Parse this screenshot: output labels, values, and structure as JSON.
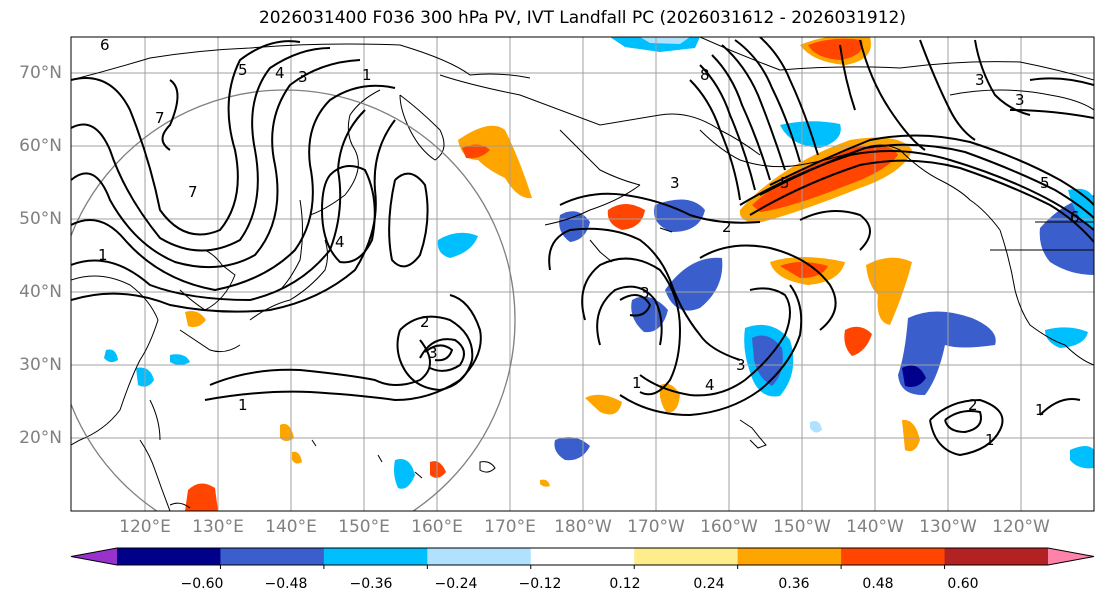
{
  "title": "2026031400 F036 300 hPa PV, IVT Landfall PC (2026031612 - 2026031912)",
  "lat_labels": [
    "70°N",
    "60°N",
    "50°N",
    "40°N",
    "30°N",
    "20°N"
  ],
  "lon_labels": [
    "120°E",
    "130°E",
    "140°E",
    "150°E",
    "160°E",
    "170°E",
    "180°W",
    "170°W",
    "160°W",
    "150°W",
    "140°W",
    "130°W",
    "120°W"
  ],
  "colorbar": {
    "colors": [
      "#9932cc",
      "#00008b",
      "#3a5fcd",
      "#00bfff",
      "#b0e2ff",
      "#ffffff",
      "#ffec8b",
      "#ffa500",
      "#ff4500",
      "#b22222",
      "#ff82ab"
    ],
    "ticks": [
      "−0.60",
      "−0.48",
      "−0.36",
      "−0.24",
      "−0.12",
      "0.12",
      "0.24",
      "0.36",
      "0.48",
      "0.60"
    ]
  },
  "contour_labels": [
    "6",
    "5",
    "4",
    "3",
    "1",
    "7",
    "7",
    "1",
    "4",
    "2",
    "3",
    "1",
    "8",
    "5",
    "3",
    "3",
    "2",
    "1",
    "4",
    "3",
    "3",
    "6",
    "1",
    "5",
    "3",
    "2",
    "1"
  ]
}
